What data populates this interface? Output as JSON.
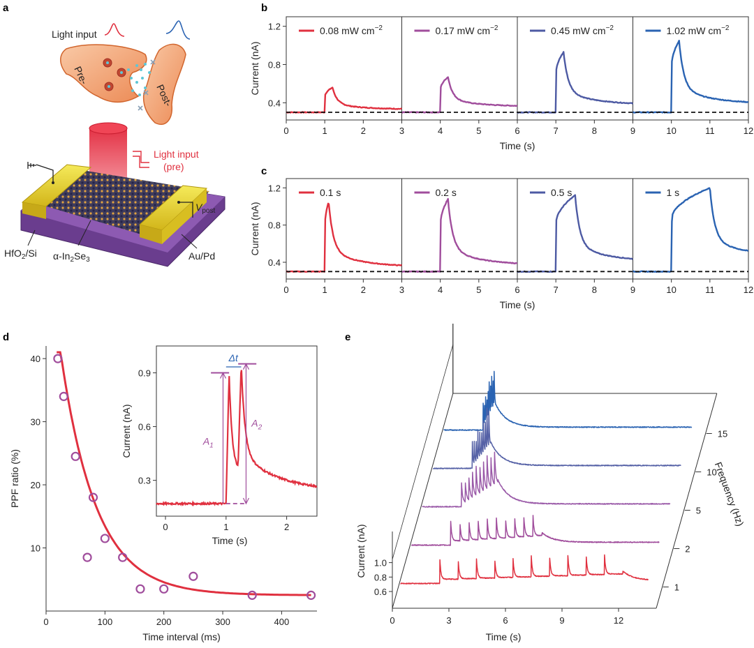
{
  "panel_labels": {
    "a": "a",
    "b": "b",
    "c": "c",
    "d": "d",
    "e": "e"
  },
  "schematic": {
    "light_input_top": "Light input",
    "pre": "Pre-",
    "post": "Post-",
    "light_input_pre_l1": "Light input",
    "light_input_pre_l2": "(pre)",
    "v_post": "V",
    "v_post_sub": "post",
    "hfo2_a": "HfO",
    "hfo2_sub": "2",
    "hfo2_b": "/Si",
    "in2se3_a": "α-In",
    "in2se3_sub1": "2",
    "in2se3_b": "Se",
    "in2se3_sub2": "3",
    "aupd": "Au/Pd"
  },
  "chart_data": [
    {
      "id": "b",
      "type": "line",
      "xlabel": "Time (s)",
      "ylabel": "Current (nA)",
      "xlim": [
        0,
        12
      ],
      "ylim": [
        0.22,
        1.3
      ],
      "xticks": [
        0,
        1,
        2,
        3,
        4,
        5,
        6,
        7,
        8,
        9,
        10,
        11,
        12
      ],
      "yticks": [
        0.4,
        0.8,
        1.2
      ],
      "baseline": 0.3,
      "segments": [
        {
          "name": "0.08 mW cm",
          "sup": "−2",
          "color": "#e0303f",
          "start": 1.0,
          "width": 0.2,
          "peak": 0.56,
          "end": 0.33
        },
        {
          "name": "0.17 mW cm",
          "sup": "−2",
          "color": "#a04d9c",
          "start": 4.0,
          "width": 0.2,
          "peak": 0.67,
          "end": 0.36
        },
        {
          "name": "0.45 mW cm",
          "sup": "−2",
          "color": "#4d5aa3",
          "start": 7.0,
          "width": 0.2,
          "peak": 0.93,
          "end": 0.38
        },
        {
          "name": "1.02 mW cm",
          "sup": "−2",
          "color": "#2a63b2",
          "start": 10.0,
          "width": 0.2,
          "peak": 1.05,
          "end": 0.39
        }
      ]
    },
    {
      "id": "c",
      "type": "line",
      "xlabel": "Time (s)",
      "ylabel": "Current (nA)",
      "xlim": [
        0,
        12
      ],
      "ylim": [
        0.22,
        1.3
      ],
      "xticks": [
        0,
        1,
        2,
        3,
        4,
        5,
        6,
        7,
        8,
        9,
        10,
        11,
        12
      ],
      "yticks": [
        0.4,
        0.8,
        1.2
      ],
      "baseline": 0.3,
      "segments": [
        {
          "name": "0.1 s",
          "sup": "",
          "color": "#e0303f",
          "start": 1.0,
          "width": 0.1,
          "peak": 1.05,
          "end": 0.35
        },
        {
          "name": "0.2 s",
          "sup": "",
          "color": "#a04d9c",
          "start": 4.0,
          "width": 0.2,
          "peak": 1.08,
          "end": 0.37
        },
        {
          "name": "0.5 s",
          "sup": "",
          "color": "#4d5aa3",
          "start": 7.0,
          "width": 0.5,
          "peak": 1.12,
          "end": 0.41
        },
        {
          "name": "1 s",
          "sup": "",
          "color": "#2a63b2",
          "start": 10.0,
          "width": 1.0,
          "peak": 1.2,
          "end": 0.47
        }
      ]
    },
    {
      "id": "d",
      "type": "scatter",
      "xlabel": "Time interval (ms)",
      "ylabel": "PPF ratio (%)",
      "xlim": [
        0,
        460
      ],
      "ylim": [
        0,
        42
      ],
      "xticks": [
        0,
        100,
        200,
        300,
        400
      ],
      "yticks": [
        10,
        20,
        30,
        40
      ],
      "points": [
        {
          "x": 20,
          "y": 40
        },
        {
          "x": 30,
          "y": 34
        },
        {
          "x": 50,
          "y": 24.5
        },
        {
          "x": 70,
          "y": 8.5
        },
        {
          "x": 80,
          "y": 18
        },
        {
          "x": 100,
          "y": 11.5
        },
        {
          "x": 130,
          "y": 8.5
        },
        {
          "x": 160,
          "y": 3.5
        },
        {
          "x": 200,
          "y": 3.5
        },
        {
          "x": 250,
          "y": 5.5
        },
        {
          "x": 350,
          "y": 2.5
        },
        {
          "x": 450,
          "y": 2.5
        }
      ],
      "fit": {
        "color": "#e0303f",
        "A": 43,
        "tau": 60,
        "offset": 2.5
      },
      "marker_color": "#a04d9c",
      "inset": {
        "xlabel": "Time (s)",
        "ylabel": "Current (nA)",
        "xlim": [
          -0.15,
          2.5
        ],
        "ylim": [
          0.1,
          1.05
        ],
        "xticks": [
          0,
          1,
          2
        ],
        "yticks": [
          0.3,
          0.6,
          0.9
        ],
        "baseline": 0.17,
        "peak1": 0.9,
        "peak2": 0.95,
        "labels": {
          "dt": "Δt",
          "a1": "A",
          "a1_sub": "1",
          "a2": "A",
          "a2_sub": "2"
        }
      }
    },
    {
      "id": "e",
      "type": "line",
      "xlabel": "Time (s)",
      "ylabel": "Current (nA)",
      "zlabel": "Frequency (Hz)",
      "xticks": [
        0,
        3,
        6,
        9,
        12
      ],
      "yticks": [
        0.6,
        0.8,
        1.0
      ],
      "xlim": [
        0,
        14
      ],
      "series": [
        {
          "freq_label": "1",
          "freq": 1,
          "color": "#e0303f",
          "start": 2.3,
          "pulses": 10
        },
        {
          "freq_label": "2",
          "freq": 2,
          "color": "#a04d9c",
          "start": 2.3,
          "pulses": 10
        },
        {
          "freq_label": "5",
          "freq": 5,
          "color": "#9a5aa8",
          "start": 2.3,
          "pulses": 10
        },
        {
          "freq_label": "10",
          "freq": 10,
          "color": "#5561a6",
          "start": 2.3,
          "pulses": 10
        },
        {
          "freq_label": "15",
          "freq": 15,
          "color": "#2a63b2",
          "start": 2.3,
          "pulses": 10
        }
      ]
    }
  ]
}
